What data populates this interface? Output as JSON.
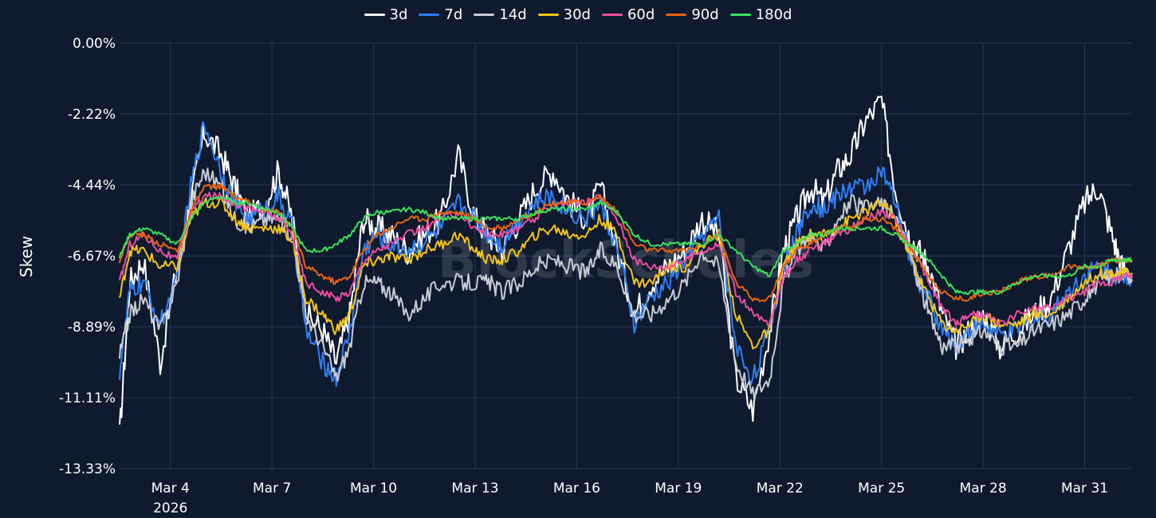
{
  "chart_data": {
    "type": "line",
    "ylabel": "Skew",
    "watermark": "BlockScholes",
    "x_ticks": [
      {
        "day": 4,
        "label": "Mar 4",
        "sublabel": "2026"
      },
      {
        "day": 7,
        "label": "Mar 7"
      },
      {
        "day": 10,
        "label": "Mar 10"
      },
      {
        "day": 13,
        "label": "Mar 13"
      },
      {
        "day": 16,
        "label": "Mar 16"
      },
      {
        "day": 19,
        "label": "Mar 19"
      },
      {
        "day": 22,
        "label": "Mar 22"
      },
      {
        "day": 25,
        "label": "Mar 25"
      },
      {
        "day": 28,
        "label": "Mar 28"
      },
      {
        "day": 31,
        "label": "Mar 31"
      }
    ],
    "y_ticks": [
      0,
      -2.22,
      -4.44,
      -6.67,
      -8.89,
      -11.11,
      -13.33
    ],
    "y_tick_labels": [
      "0.00%",
      "-2.22%",
      "-4.44%",
      "-6.67%",
      "-8.89%",
      "-11.11%",
      "-13.33%"
    ],
    "ylim": [
      -13.33,
      0
    ],
    "xlim": [
      2.5,
      32.4
    ],
    "series": [
      {
        "name": "3d",
        "color": "#ffffff",
        "x": [
          2.5,
          2.8,
          3.2,
          3.7,
          4.2,
          4.6,
          5.0,
          5.5,
          5.9,
          6.3,
          6.8,
          7.2,
          7.6,
          8.0,
          8.5,
          8.9,
          9.3,
          9.7,
          10.1,
          10.5,
          11.0,
          11.5,
          12.0,
          12.5,
          13.0,
          13.4,
          13.8,
          14.3,
          14.8,
          15.3,
          15.8,
          16.3,
          16.7,
          17.2,
          17.7,
          18.2,
          18.7,
          19.2,
          19.7,
          20.2,
          20.7,
          21.2,
          21.7,
          22.1,
          22.5,
          22.9,
          23.3,
          23.7,
          24.1,
          24.5,
          25.0,
          25.4,
          25.8,
          26.1,
          26.4,
          26.8,
          27.2,
          27.6,
          28.0,
          28.5,
          29.0,
          29.5,
          30.0,
          30.5,
          31.0,
          31.4,
          31.8,
          32.1,
          32.4
        ],
        "values": [
          -12.3,
          -7.5,
          -6.8,
          -10.0,
          -7.0,
          -5.0,
          -2.8,
          -3.5,
          -4.5,
          -5.5,
          -5.0,
          -4.0,
          -5.5,
          -8.5,
          -9.0,
          -10.0,
          -8.5,
          -5.5,
          -5.8,
          -6.0,
          -6.5,
          -6.0,
          -5.5,
          -3.5,
          -5.5,
          -6.0,
          -6.5,
          -5.5,
          -4.5,
          -4.0,
          -5.0,
          -5.5,
          -4.5,
          -6.5,
          -8.5,
          -7.5,
          -7.0,
          -6.5,
          -5.5,
          -6.0,
          -10.5,
          -11.5,
          -9.0,
          -6.5,
          -5.5,
          -4.5,
          -5.0,
          -4.0,
          -3.5,
          -2.5,
          -1.8,
          -4.5,
          -6.0,
          -6.5,
          -7.0,
          -8.5,
          -9.5,
          -9.0,
          -8.5,
          -9.5,
          -9.0,
          -8.5,
          -8.0,
          -6.5,
          -5.0,
          -4.5,
          -6.0,
          -7.0,
          -7.3
        ]
      },
      {
        "name": "7d",
        "color": "#2f7ff3",
        "x": [
          2.5,
          2.8,
          3.2,
          3.7,
          4.2,
          4.6,
          5.0,
          5.5,
          5.9,
          6.3,
          6.8,
          7.2,
          7.6,
          8.0,
          8.5,
          8.9,
          9.3,
          9.7,
          10.1,
          10.5,
          11.0,
          11.5,
          12.0,
          12.5,
          13.0,
          13.4,
          13.8,
          14.3,
          14.8,
          15.3,
          15.8,
          16.3,
          16.7,
          17.2,
          17.7,
          18.2,
          18.7,
          19.2,
          19.7,
          20.2,
          20.7,
          21.2,
          21.7,
          22.1,
          22.5,
          22.9,
          23.3,
          23.7,
          24.1,
          24.5,
          25.0,
          25.4,
          25.8,
          26.1,
          26.4,
          26.8,
          27.2,
          27.6,
          28.0,
          28.5,
          29.0,
          29.5,
          30.0,
          30.5,
          31.0,
          31.4,
          31.8,
          32.1,
          32.4
        ],
        "values": [
          -10.3,
          -7.8,
          -7.5,
          -8.8,
          -7.5,
          -4.5,
          -2.5,
          -4.0,
          -5.0,
          -5.5,
          -5.2,
          -4.8,
          -5.8,
          -9.0,
          -10.0,
          -10.5,
          -9.0,
          -6.5,
          -6.0,
          -6.3,
          -6.5,
          -6.2,
          -5.8,
          -5.0,
          -5.5,
          -6.0,
          -6.3,
          -5.5,
          -5.0,
          -4.8,
          -5.3,
          -5.5,
          -5.0,
          -6.5,
          -8.8,
          -8.0,
          -7.5,
          -6.8,
          -6.0,
          -5.5,
          -9.5,
          -10.5,
          -9.0,
          -7.0,
          -6.0,
          -5.0,
          -5.2,
          -4.8,
          -4.5,
          -4.5,
          -4.0,
          -5.0,
          -6.5,
          -7.5,
          -8.0,
          -9.0,
          -9.5,
          -9.0,
          -8.8,
          -9.2,
          -9.0,
          -8.7,
          -8.5,
          -7.8,
          -7.3,
          -7.0,
          -7.2,
          -7.3,
          -7.3
        ]
      },
      {
        "name": "14d",
        "color": "#c8ccd4",
        "x": [
          2.5,
          2.8,
          3.2,
          3.7,
          4.2,
          4.6,
          5.0,
          5.5,
          5.9,
          6.3,
          6.8,
          7.2,
          7.6,
          8.0,
          8.5,
          8.9,
          9.3,
          9.7,
          10.1,
          10.5,
          11.0,
          11.5,
          12.0,
          12.5,
          13.0,
          13.4,
          13.8,
          14.3,
          14.8,
          15.3,
          15.8,
          16.3,
          16.7,
          17.2,
          17.7,
          18.2,
          18.7,
          19.2,
          19.7,
          20.2,
          20.7,
          21.2,
          21.7,
          22.1,
          22.5,
          22.9,
          23.3,
          23.7,
          24.1,
          24.5,
          25.0,
          25.4,
          25.8,
          26.1,
          26.4,
          26.8,
          27.2,
          27.6,
          28.0,
          28.5,
          29.0,
          29.5,
          30.0,
          30.5,
          31.0,
          31.4,
          31.8,
          32.1,
          32.4
        ],
        "values": [
          -9.8,
          -8.5,
          -8.0,
          -9.0,
          -7.5,
          -5.0,
          -4.0,
          -4.5,
          -5.5,
          -5.8,
          -5.5,
          -5.5,
          -6.0,
          -8.5,
          -9.5,
          -10.5,
          -9.5,
          -7.5,
          -7.5,
          -7.8,
          -8.5,
          -8.0,
          -7.5,
          -7.5,
          -7.5,
          -7.5,
          -7.8,
          -7.5,
          -7.0,
          -6.8,
          -7.0,
          -7.2,
          -6.5,
          -7.0,
          -8.5,
          -8.5,
          -8.0,
          -7.5,
          -6.5,
          -7.0,
          -10.0,
          -11.0,
          -10.5,
          -7.5,
          -6.5,
          -6.0,
          -6.5,
          -5.5,
          -5.0,
          -5.2,
          -5.0,
          -5.5,
          -6.5,
          -7.5,
          -8.5,
          -9.5,
          -9.5,
          -9.3,
          -9.0,
          -9.5,
          -9.5,
          -9.0,
          -8.8,
          -8.5,
          -8.0,
          -7.5,
          -7.3,
          -7.3,
          -7.4
        ]
      },
      {
        "name": "30d",
        "color": "#f5c419",
        "x": [
          2.5,
          2.8,
          3.2,
          3.7,
          4.2,
          4.6,
          5.0,
          5.5,
          5.9,
          6.3,
          6.8,
          7.2,
          7.6,
          8.0,
          8.5,
          8.9,
          9.3,
          9.7,
          10.1,
          10.5,
          11.0,
          11.5,
          12.0,
          12.5,
          13.0,
          13.4,
          13.8,
          14.3,
          14.8,
          15.3,
          15.8,
          16.3,
          16.7,
          17.2,
          17.7,
          18.2,
          18.7,
          19.2,
          19.7,
          20.2,
          20.7,
          21.2,
          21.7,
          22.1,
          22.5,
          22.9,
          23.3,
          23.7,
          24.1,
          24.5,
          25.0,
          25.4,
          25.8,
          26.1,
          26.4,
          26.8,
          27.2,
          27.6,
          28.0,
          28.5,
          29.0,
          29.5,
          30.0,
          30.5,
          31.0,
          31.4,
          31.8,
          32.1,
          32.4
        ],
        "values": [
          -8.0,
          -6.5,
          -6.5,
          -7.0,
          -7.0,
          -5.5,
          -5.0,
          -5.0,
          -5.5,
          -5.8,
          -5.8,
          -5.8,
          -6.2,
          -8.0,
          -8.5,
          -9.0,
          -8.5,
          -7.0,
          -6.8,
          -6.7,
          -6.8,
          -6.5,
          -6.3,
          -6.0,
          -6.5,
          -6.8,
          -6.8,
          -6.5,
          -6.0,
          -5.8,
          -6.0,
          -6.0,
          -5.5,
          -6.0,
          -7.5,
          -7.5,
          -7.0,
          -7.0,
          -6.3,
          -6.0,
          -8.5,
          -9.5,
          -9.0,
          -7.0,
          -6.3,
          -6.0,
          -6.0,
          -5.8,
          -5.5,
          -5.3,
          -5.0,
          -5.5,
          -6.5,
          -7.3,
          -8.0,
          -8.8,
          -9.0,
          -8.8,
          -8.5,
          -8.8,
          -8.8,
          -8.5,
          -8.5,
          -8.0,
          -7.5,
          -7.2,
          -7.2,
          -7.2,
          -7.2
        ]
      },
      {
        "name": "60d",
        "color": "#ec4ea0",
        "x": [
          2.5,
          2.8,
          3.2,
          3.7,
          4.2,
          4.6,
          5.0,
          5.5,
          5.9,
          6.3,
          6.8,
          7.2,
          7.6,
          8.0,
          8.5,
          8.9,
          9.3,
          9.7,
          10.1,
          10.5,
          11.0,
          11.5,
          12.0,
          12.5,
          13.0,
          13.4,
          13.8,
          14.3,
          14.8,
          15.3,
          15.8,
          16.3,
          16.7,
          17.2,
          17.7,
          18.2,
          18.7,
          19.2,
          19.7,
          20.2,
          20.7,
          21.2,
          21.7,
          22.1,
          22.5,
          22.9,
          23.3,
          23.7,
          24.1,
          24.5,
          25.0,
          25.4,
          25.8,
          26.1,
          26.4,
          26.8,
          27.2,
          27.6,
          28.0,
          28.5,
          29.0,
          29.5,
          30.0,
          30.5,
          31.0,
          31.4,
          31.8,
          32.1,
          32.4
        ],
        "values": [
          -7.5,
          -6.3,
          -6.0,
          -6.5,
          -6.8,
          -5.3,
          -4.8,
          -4.8,
          -5.0,
          -5.2,
          -5.3,
          -5.5,
          -6.0,
          -7.5,
          -7.8,
          -8.0,
          -7.8,
          -6.8,
          -6.5,
          -6.3,
          -6.0,
          -5.8,
          -5.5,
          -5.3,
          -5.8,
          -6.0,
          -6.0,
          -5.8,
          -5.5,
          -5.0,
          -5.0,
          -5.0,
          -4.8,
          -5.5,
          -6.8,
          -7.0,
          -7.0,
          -6.8,
          -6.5,
          -6.3,
          -7.8,
          -8.5,
          -8.8,
          -7.3,
          -6.8,
          -6.5,
          -6.3,
          -6.0,
          -5.8,
          -5.5,
          -5.3,
          -5.5,
          -6.3,
          -6.8,
          -7.5,
          -8.3,
          -8.8,
          -8.5,
          -8.5,
          -8.8,
          -8.5,
          -8.3,
          -8.3,
          -8.0,
          -7.8,
          -7.5,
          -7.5,
          -7.3,
          -7.3
        ]
      },
      {
        "name": "90d",
        "color": "#e8650f",
        "x": [
          2.5,
          2.8,
          3.2,
          3.7,
          4.2,
          4.6,
          5.0,
          5.5,
          5.9,
          6.3,
          6.8,
          7.2,
          7.6,
          8.0,
          8.5,
          8.9,
          9.3,
          9.7,
          10.1,
          10.5,
          11.0,
          11.5,
          12.0,
          12.5,
          13.0,
          13.4,
          13.8,
          14.3,
          14.8,
          15.3,
          15.8,
          16.3,
          16.7,
          17.2,
          17.7,
          18.2,
          18.7,
          19.2,
          19.7,
          20.2,
          20.7,
          21.2,
          21.7,
          22.1,
          22.5,
          22.9,
          23.3,
          23.7,
          24.1,
          24.5,
          25.0,
          25.4,
          25.8,
          26.1,
          26.4,
          26.8,
          27.2,
          27.6,
          28.0,
          28.5,
          29.0,
          29.5,
          30.0,
          30.5,
          31.0,
          31.4,
          31.8,
          32.1,
          32.4
        ],
        "values": [
          -6.8,
          -6.0,
          -6.0,
          -6.3,
          -6.5,
          -5.3,
          -4.5,
          -4.5,
          -4.8,
          -5.0,
          -5.2,
          -5.3,
          -5.8,
          -7.0,
          -7.3,
          -7.5,
          -7.3,
          -6.5,
          -6.0,
          -5.8,
          -5.5,
          -5.5,
          -5.3,
          -5.3,
          -5.5,
          -5.8,
          -5.8,
          -5.5,
          -5.3,
          -5.0,
          -5.0,
          -5.0,
          -4.8,
          -5.3,
          -6.3,
          -6.5,
          -6.5,
          -6.5,
          -6.3,
          -6.0,
          -7.5,
          -8.0,
          -8.0,
          -7.0,
          -6.5,
          -6.3,
          -6.0,
          -5.8,
          -5.8,
          -5.5,
          -5.5,
          -5.8,
          -6.3,
          -6.8,
          -7.3,
          -7.8,
          -8.0,
          -8.0,
          -7.8,
          -7.8,
          -7.5,
          -7.3,
          -7.3,
          -7.0,
          -7.0,
          -7.0,
          -6.8,
          -6.8,
          -6.8
        ]
      },
      {
        "name": "180d",
        "color": "#39e35b",
        "x": [
          2.5,
          2.8,
          3.2,
          3.7,
          4.2,
          4.6,
          5.0,
          5.5,
          5.9,
          6.3,
          6.8,
          7.2,
          7.6,
          8.0,
          8.5,
          8.9,
          9.3,
          9.7,
          10.1,
          10.5,
          11.0,
          11.5,
          12.0,
          12.5,
          13.0,
          13.4,
          13.8,
          14.3,
          14.8,
          15.3,
          15.8,
          16.3,
          16.7,
          17.2,
          17.7,
          18.2,
          18.7,
          19.2,
          19.7,
          20.2,
          20.7,
          21.2,
          21.7,
          22.1,
          22.5,
          22.9,
          23.3,
          23.7,
          24.1,
          24.5,
          25.0,
          25.4,
          25.8,
          26.1,
          26.4,
          26.8,
          27.2,
          27.6,
          28.0,
          28.5,
          29.0,
          29.5,
          30.0,
          30.5,
          31.0,
          31.4,
          31.8,
          32.1,
          32.4
        ],
        "values": [
          -6.7,
          -6.0,
          -5.8,
          -6.0,
          -6.3,
          -5.5,
          -5.0,
          -4.8,
          -5.0,
          -5.0,
          -5.2,
          -5.3,
          -5.8,
          -6.5,
          -6.5,
          -6.3,
          -6.0,
          -5.5,
          -5.3,
          -5.3,
          -5.2,
          -5.3,
          -5.5,
          -5.5,
          -5.5,
          -5.5,
          -5.5,
          -5.5,
          -5.3,
          -5.2,
          -5.2,
          -5.2,
          -5.0,
          -5.3,
          -6.0,
          -6.3,
          -6.3,
          -6.3,
          -6.3,
          -6.0,
          -6.5,
          -7.0,
          -7.3,
          -6.5,
          -6.3,
          -6.0,
          -6.0,
          -5.8,
          -5.8,
          -5.8,
          -5.8,
          -6.0,
          -6.3,
          -6.5,
          -6.8,
          -7.3,
          -7.8,
          -7.8,
          -7.8,
          -7.8,
          -7.5,
          -7.3,
          -7.3,
          -7.3,
          -7.0,
          -7.0,
          -6.8,
          -6.8,
          -6.8
        ]
      }
    ]
  }
}
